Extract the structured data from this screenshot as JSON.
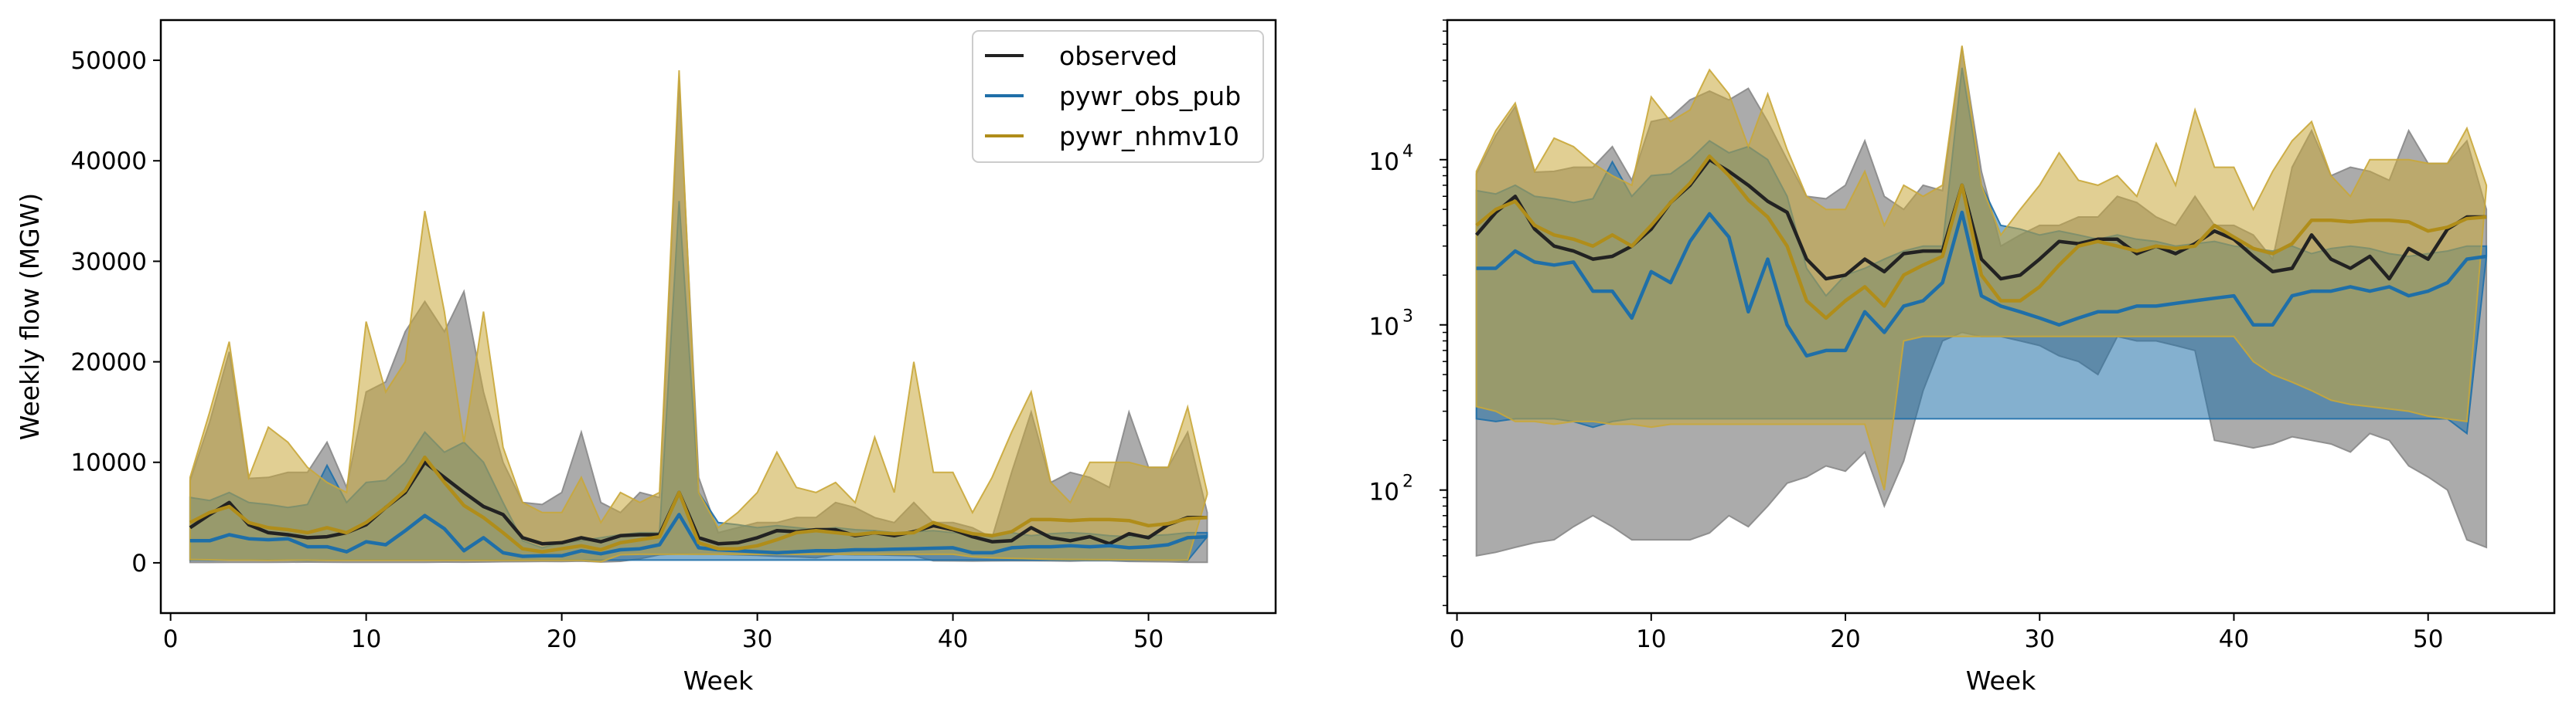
{
  "chart_data": [
    {
      "type": "line",
      "scale": "linear",
      "xlabel": "Week",
      "ylabel": "Weekly flow (MGW)",
      "xlim": [
        -0.5,
        56.5
      ],
      "ylim": [
        -5000,
        54000
      ],
      "xticks": [
        0,
        10,
        20,
        30,
        40,
        50
      ],
      "yticks": [
        0,
        10000,
        20000,
        30000,
        40000,
        50000
      ],
      "xtick_labels": [
        "0",
        "10",
        "20",
        "30",
        "40",
        "50"
      ],
      "ytick_labels": [
        "0",
        "10000",
        "20000",
        "30000",
        "40000",
        "50000"
      ],
      "legend": {
        "position": "top-right",
        "entries": [
          {
            "name": "observed",
            "color": "#222222"
          },
          {
            "name": "pywr_obs_pub",
            "color": "#1f6fa8"
          },
          {
            "name": "pywr_nhmv10",
            "color": "#b08d1a"
          }
        ]
      },
      "x": [
        1,
        2,
        3,
        4,
        5,
        6,
        7,
        8,
        9,
        10,
        11,
        12,
        13,
        14,
        15,
        16,
        17,
        18,
        19,
        20,
        21,
        22,
        23,
        24,
        25,
        26,
        27,
        28,
        29,
        30,
        31,
        32,
        33,
        34,
        35,
        36,
        37,
        38,
        39,
        40,
        41,
        42,
        43,
        44,
        45,
        46,
        47,
        48,
        49,
        50,
        51,
        52,
        53
      ],
      "series": [
        {
          "name": "observed",
          "color": "#222222",
          "fill_color": "#888888",
          "fill_opacity": 0.7,
          "line": [
            3500,
            4800,
            6000,
            3800,
            3000,
            2800,
            2500,
            2600,
            3000,
            3800,
            5500,
            7000,
            10000,
            8500,
            7000,
            5600,
            4800,
            2500,
            1900,
            2000,
            2500,
            2100,
            2700,
            2800,
            2800,
            7000,
            2500,
            1900,
            2000,
            2500,
            3200,
            3100,
            3300,
            3300,
            2700,
            3000,
            2700,
            3100,
            3700,
            3300,
            2600,
            2100,
            2200,
            3500,
            2500,
            2200,
            2600,
            1900,
            2900,
            2500,
            3800,
            4500,
            4500
          ],
          "upper": [
            8200,
            14000,
            21000,
            8400,
            8500,
            9000,
            9000,
            12000,
            7500,
            17000,
            18000,
            23000,
            26000,
            23000,
            27000,
            17000,
            10000,
            6000,
            5800,
            7000,
            13000,
            6000,
            5000,
            7000,
            6500,
            48000,
            8500,
            3000,
            3500,
            4000,
            4000,
            4500,
            4500,
            6000,
            5500,
            4500,
            4000,
            6000,
            4000,
            4000,
            3500,
            2500,
            9000,
            15000,
            8000,
            9000,
            8500,
            7500,
            15000,
            9500,
            9500,
            13000,
            5000
          ],
          "lower": [
            40,
            42,
            45,
            48,
            50,
            60,
            70,
            60,
            50,
            50,
            50,
            50,
            55,
            70,
            60,
            80,
            110,
            120,
            140,
            130,
            170,
            80,
            150,
            400,
            800,
            900,
            850,
            850,
            800,
            750,
            650,
            600,
            500,
            850,
            800,
            800,
            750,
            700,
            200,
            190,
            180,
            190,
            210,
            200,
            190,
            170,
            220,
            200,
            140,
            120,
            100,
            50,
            45
          ]
        },
        {
          "name": "pywr_obs_pub",
          "color": "#1f6fa8",
          "fill_color": "#1f6fa8",
          "fill_opacity": 0.55,
          "line": [
            2200,
            2200,
            2800,
            2400,
            2300,
            2400,
            1600,
            1600,
            1100,
            2100,
            1800,
            3200,
            4700,
            3400,
            1200,
            2500,
            1000,
            650,
            700,
            700,
            1200,
            900,
            1300,
            1400,
            1800,
            4800,
            1500,
            1300,
            1200,
            1100,
            1000,
            1100,
            1200,
            1200,
            1300,
            1300,
            1350,
            1400,
            1450,
            1500,
            1000,
            1000,
            1500,
            1600,
            1600,
            1700,
            1600,
            1700,
            1500,
            1600,
            1800,
            2500,
            2600
          ],
          "upper": [
            6500,
            6200,
            7000,
            6000,
            5800,
            5500,
            5800,
            9700,
            6000,
            8000,
            8200,
            10000,
            13000,
            11000,
            12000,
            10000,
            6000,
            2200,
            1500,
            2000,
            2200,
            2500,
            2800,
            3000,
            3000,
            36000,
            7000,
            4000,
            3800,
            3500,
            3700,
            3500,
            3300,
            3500,
            3300,
            3200,
            3000,
            3100,
            3200,
            3000,
            2900,
            2800,
            3000,
            2700,
            2900,
            3000,
            2900,
            2700,
            2600,
            2700,
            2800,
            3000,
            3000
          ],
          "lower": [
            270,
            260,
            270,
            270,
            270,
            260,
            240,
            260,
            270,
            270,
            270,
            270,
            270,
            270,
            270,
            270,
            270,
            270,
            270,
            270,
            270,
            270,
            270,
            270,
            270,
            270,
            270,
            270,
            270,
            270,
            270,
            270,
            270,
            270,
            270,
            270,
            270,
            270,
            270,
            270,
            270,
            270,
            270,
            270,
            270,
            270,
            270,
            270,
            270,
            270,
            270,
            220,
            2600
          ]
        },
        {
          "name": "pywr_nhmv10",
          "color": "#b08d1a",
          "fill_color": "#c9a73a",
          "fill_opacity": 0.55,
          "line": [
            4000,
            5000,
            5600,
            4000,
            3500,
            3300,
            3000,
            3500,
            3000,
            4000,
            5500,
            7200,
            10500,
            8000,
            5700,
            4500,
            3000,
            1400,
            1100,
            1400,
            1700,
            1300,
            2000,
            2300,
            2600,
            7000,
            2000,
            1400,
            1400,
            1700,
            2300,
            3000,
            3200,
            3000,
            2800,
            3000,
            2900,
            3000,
            4000,
            3400,
            2900,
            2700,
            3100,
            4300,
            4300,
            4200,
            4300,
            4300,
            4200,
            3700,
            3900,
            4400,
            4500
          ],
          "upper": [
            8500,
            15000,
            22000,
            8500,
            13500,
            12000,
            9500,
            8000,
            7000,
            24000,
            17000,
            20000,
            35000,
            25000,
            12000,
            25000,
            11500,
            6000,
            5000,
            5000,
            8500,
            4000,
            7000,
            6000,
            7000,
            49000,
            7000,
            3500,
            5000,
            7000,
            11000,
            7500,
            7000,
            8000,
            6000,
            12500,
            7000,
            20000,
            9000,
            9000,
            5000,
            8500,
            13000,
            17000,
            8000,
            6000,
            10000,
            10000,
            10000,
            9500,
            9500,
            15500,
            7000
          ],
          "lower": [
            320,
            300,
            260,
            260,
            250,
            260,
            260,
            250,
            250,
            240,
            250,
            250,
            250,
            250,
            250,
            250,
            250,
            250,
            250,
            250,
            250,
            100,
            800,
            850,
            850,
            850,
            850,
            850,
            850,
            850,
            850,
            850,
            850,
            850,
            850,
            850,
            850,
            850,
            850,
            850,
            600,
            500,
            450,
            400,
            350,
            330,
            320,
            310,
            300,
            280,
            270,
            260,
            6800
          ]
        }
      ]
    },
    {
      "type": "line",
      "scale": "log",
      "xlabel": "Week",
      "ylabel": "",
      "xlim": [
        -0.5,
        56.5
      ],
      "ylim": [
        18,
        70000
      ],
      "xticks": [
        0,
        10,
        20,
        30,
        40,
        50
      ],
      "yticks": [
        100,
        1000,
        10000
      ],
      "xtick_labels": [
        "0",
        "10",
        "20",
        "30",
        "40",
        "50"
      ],
      "ytick_labels": [
        {
          "base": "10",
          "exp": "2"
        },
        {
          "base": "10",
          "exp": "3"
        },
        {
          "base": "10",
          "exp": "4"
        }
      ],
      "x": [
        1,
        2,
        3,
        4,
        5,
        6,
        7,
        8,
        9,
        10,
        11,
        12,
        13,
        14,
        15,
        16,
        17,
        18,
        19,
        20,
        21,
        22,
        23,
        24,
        25,
        26,
        27,
        28,
        29,
        30,
        31,
        32,
        33,
        34,
        35,
        36,
        37,
        38,
        39,
        40,
        41,
        42,
        43,
        44,
        45,
        46,
        47,
        48,
        49,
        50,
        51,
        52,
        53
      ],
      "series_ref": "same as first chart"
    }
  ]
}
